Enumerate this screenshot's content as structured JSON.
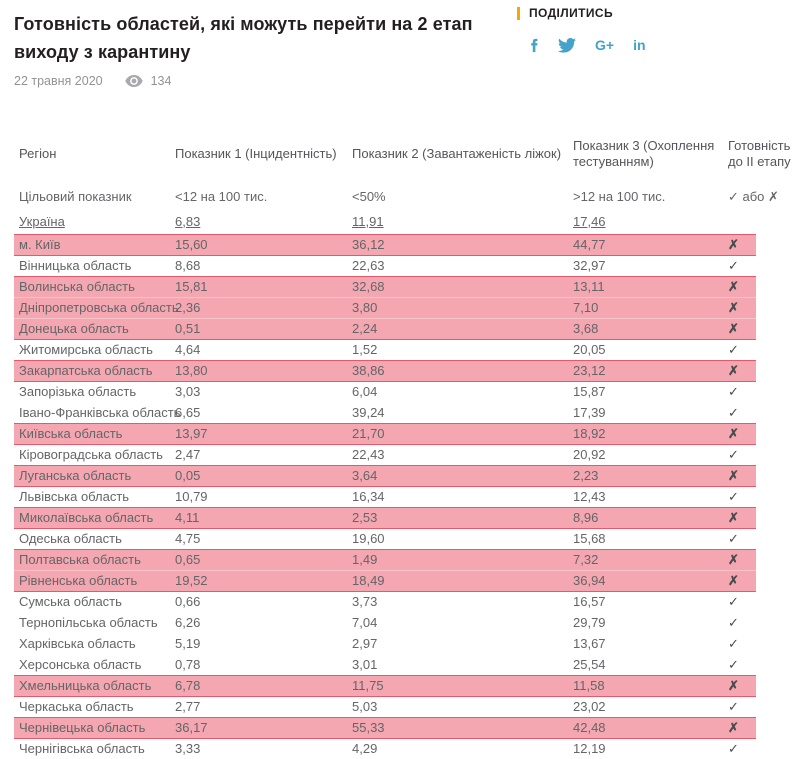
{
  "article": {
    "title": "Готовність областей, які можуть перейти на 2 етап виходу з карантину",
    "date": "22 травня 2020",
    "views": "134",
    "share": {
      "label": "ПОДІЛИТИСЬ",
      "icons": [
        "facebook-icon",
        "twitter-icon",
        "google-plus-icon",
        "linkedin-icon"
      ],
      "gplus_glyph": "G+",
      "linkedin_glyph": "in"
    }
  },
  "colors": {
    "highlight_pink": "#f4a7b1",
    "highlight_separator": "#f7c3ca",
    "highlight_border_red": "#e25a6b",
    "accent_yellow": "#f3a905",
    "social_blue": "#43a3ca"
  },
  "table": {
    "columns": [
      "Регіон",
      "Показник 1 (Інцидентність)",
      "Показник 2 (Завантаженість ліжок)",
      "Показник 3 (Охоплення тестуванням)",
      "Готовність до II етапу"
    ],
    "check_glyph": "✓",
    "cross_glyph": "✗",
    "target_row": {
      "label": "Цільовий показник",
      "p1": "<12 на 100 тис.",
      "p2": "<50%",
      "p3": ">12 на 100 тис.",
      "ready": "✓ або ✗"
    },
    "ukraine_row": {
      "label": "Україна",
      "p1": "6,83",
      "p2": "11,91",
      "p3": "17,46",
      "ready": ""
    },
    "rows": [
      {
        "region": "м. Київ",
        "p1": "15,60",
        "p2": "36,12",
        "p3": "44,77",
        "ready": false,
        "highlight": true
      },
      {
        "region": "Вінницька область",
        "p1": "8,68",
        "p2": "22,63",
        "p3": "32,97",
        "ready": true,
        "highlight": false
      },
      {
        "region": "Волинська область",
        "p1": "15,81",
        "p2": "32,68",
        "p3": "13,11",
        "ready": false,
        "highlight": true
      },
      {
        "region": "Дніпропетровська область",
        "p1": "2,36",
        "p2": "3,80",
        "p3": "7,10",
        "ready": false,
        "highlight": true
      },
      {
        "region": "Донецька область",
        "p1": "0,51",
        "p2": "2,24",
        "p3": "3,68",
        "ready": false,
        "highlight": true
      },
      {
        "region": "Житомирська область",
        "p1": "4,64",
        "p2": "1,52",
        "p3": "20,05",
        "ready": true,
        "highlight": false
      },
      {
        "region": "Закарпатська область",
        "p1": "13,80",
        "p2": "38,86",
        "p3": "23,12",
        "ready": false,
        "highlight": true
      },
      {
        "region": "Запорізька область",
        "p1": "3,03",
        "p2": "6,04",
        "p3": "15,87",
        "ready": true,
        "highlight": false
      },
      {
        "region": "Івано-Франківська область",
        "p1": "6,65",
        "p2": "39,24",
        "p3": "17,39",
        "ready": true,
        "highlight": false
      },
      {
        "region": "Київська область",
        "p1": "13,97",
        "p2": "21,70",
        "p3": "18,92",
        "ready": false,
        "highlight": true
      },
      {
        "region": "Кіровоградська область",
        "p1": "2,47",
        "p2": "22,43",
        "p3": "20,92",
        "ready": true,
        "highlight": false
      },
      {
        "region": "Луганська область",
        "p1": "0,05",
        "p2": "3,64",
        "p3": "2,23",
        "ready": false,
        "highlight": true
      },
      {
        "region": "Львівська область",
        "p1": "10,79",
        "p2": "16,34",
        "p3": "12,43",
        "ready": true,
        "highlight": false
      },
      {
        "region": "Миколаївська область",
        "p1": "4,11",
        "p2": "2,53",
        "p3": "8,96",
        "ready": false,
        "highlight": true
      },
      {
        "region": "Одеська область",
        "p1": "4,75",
        "p2": "19,60",
        "p3": "15,68",
        "ready": true,
        "highlight": false
      },
      {
        "region": "Полтавська область",
        "p1": "0,65",
        "p2": "1,49",
        "p3": "7,32",
        "ready": false,
        "highlight": true
      },
      {
        "region": "Рівненська область",
        "p1": "19,52",
        "p2": "18,49",
        "p3": "36,94",
        "ready": false,
        "highlight": true
      },
      {
        "region": "Сумська область",
        "p1": "0,66",
        "p2": "3,73",
        "p3": "16,57",
        "ready": true,
        "highlight": false
      },
      {
        "region": "Тернопільська область",
        "p1": "6,26",
        "p2": "7,04",
        "p3": "29,79",
        "ready": true,
        "highlight": false
      },
      {
        "region": "Харківська область",
        "p1": "5,19",
        "p2": "2,97",
        "p3": "13,67",
        "ready": true,
        "highlight": false
      },
      {
        "region": "Херсонська область",
        "p1": "0,78",
        "p2": "3,01",
        "p3": "25,54",
        "ready": true,
        "highlight": false
      },
      {
        "region": "Хмельницька область",
        "p1": "6,78",
        "p2": "11,75",
        "p3": "11,58",
        "ready": false,
        "highlight": true
      },
      {
        "region": "Черкаська область",
        "p1": "2,77",
        "p2": "5,03",
        "p3": "23,02",
        "ready": true,
        "highlight": false
      },
      {
        "region": "Чернівецька область",
        "p1": "36,17",
        "p2": "55,33",
        "p3": "42,48",
        "ready": false,
        "highlight": true
      },
      {
        "region": "Чернігівська область",
        "p1": "3,33",
        "p2": "4,29",
        "p3": "12,19",
        "ready": true,
        "highlight": false
      }
    ]
  }
}
